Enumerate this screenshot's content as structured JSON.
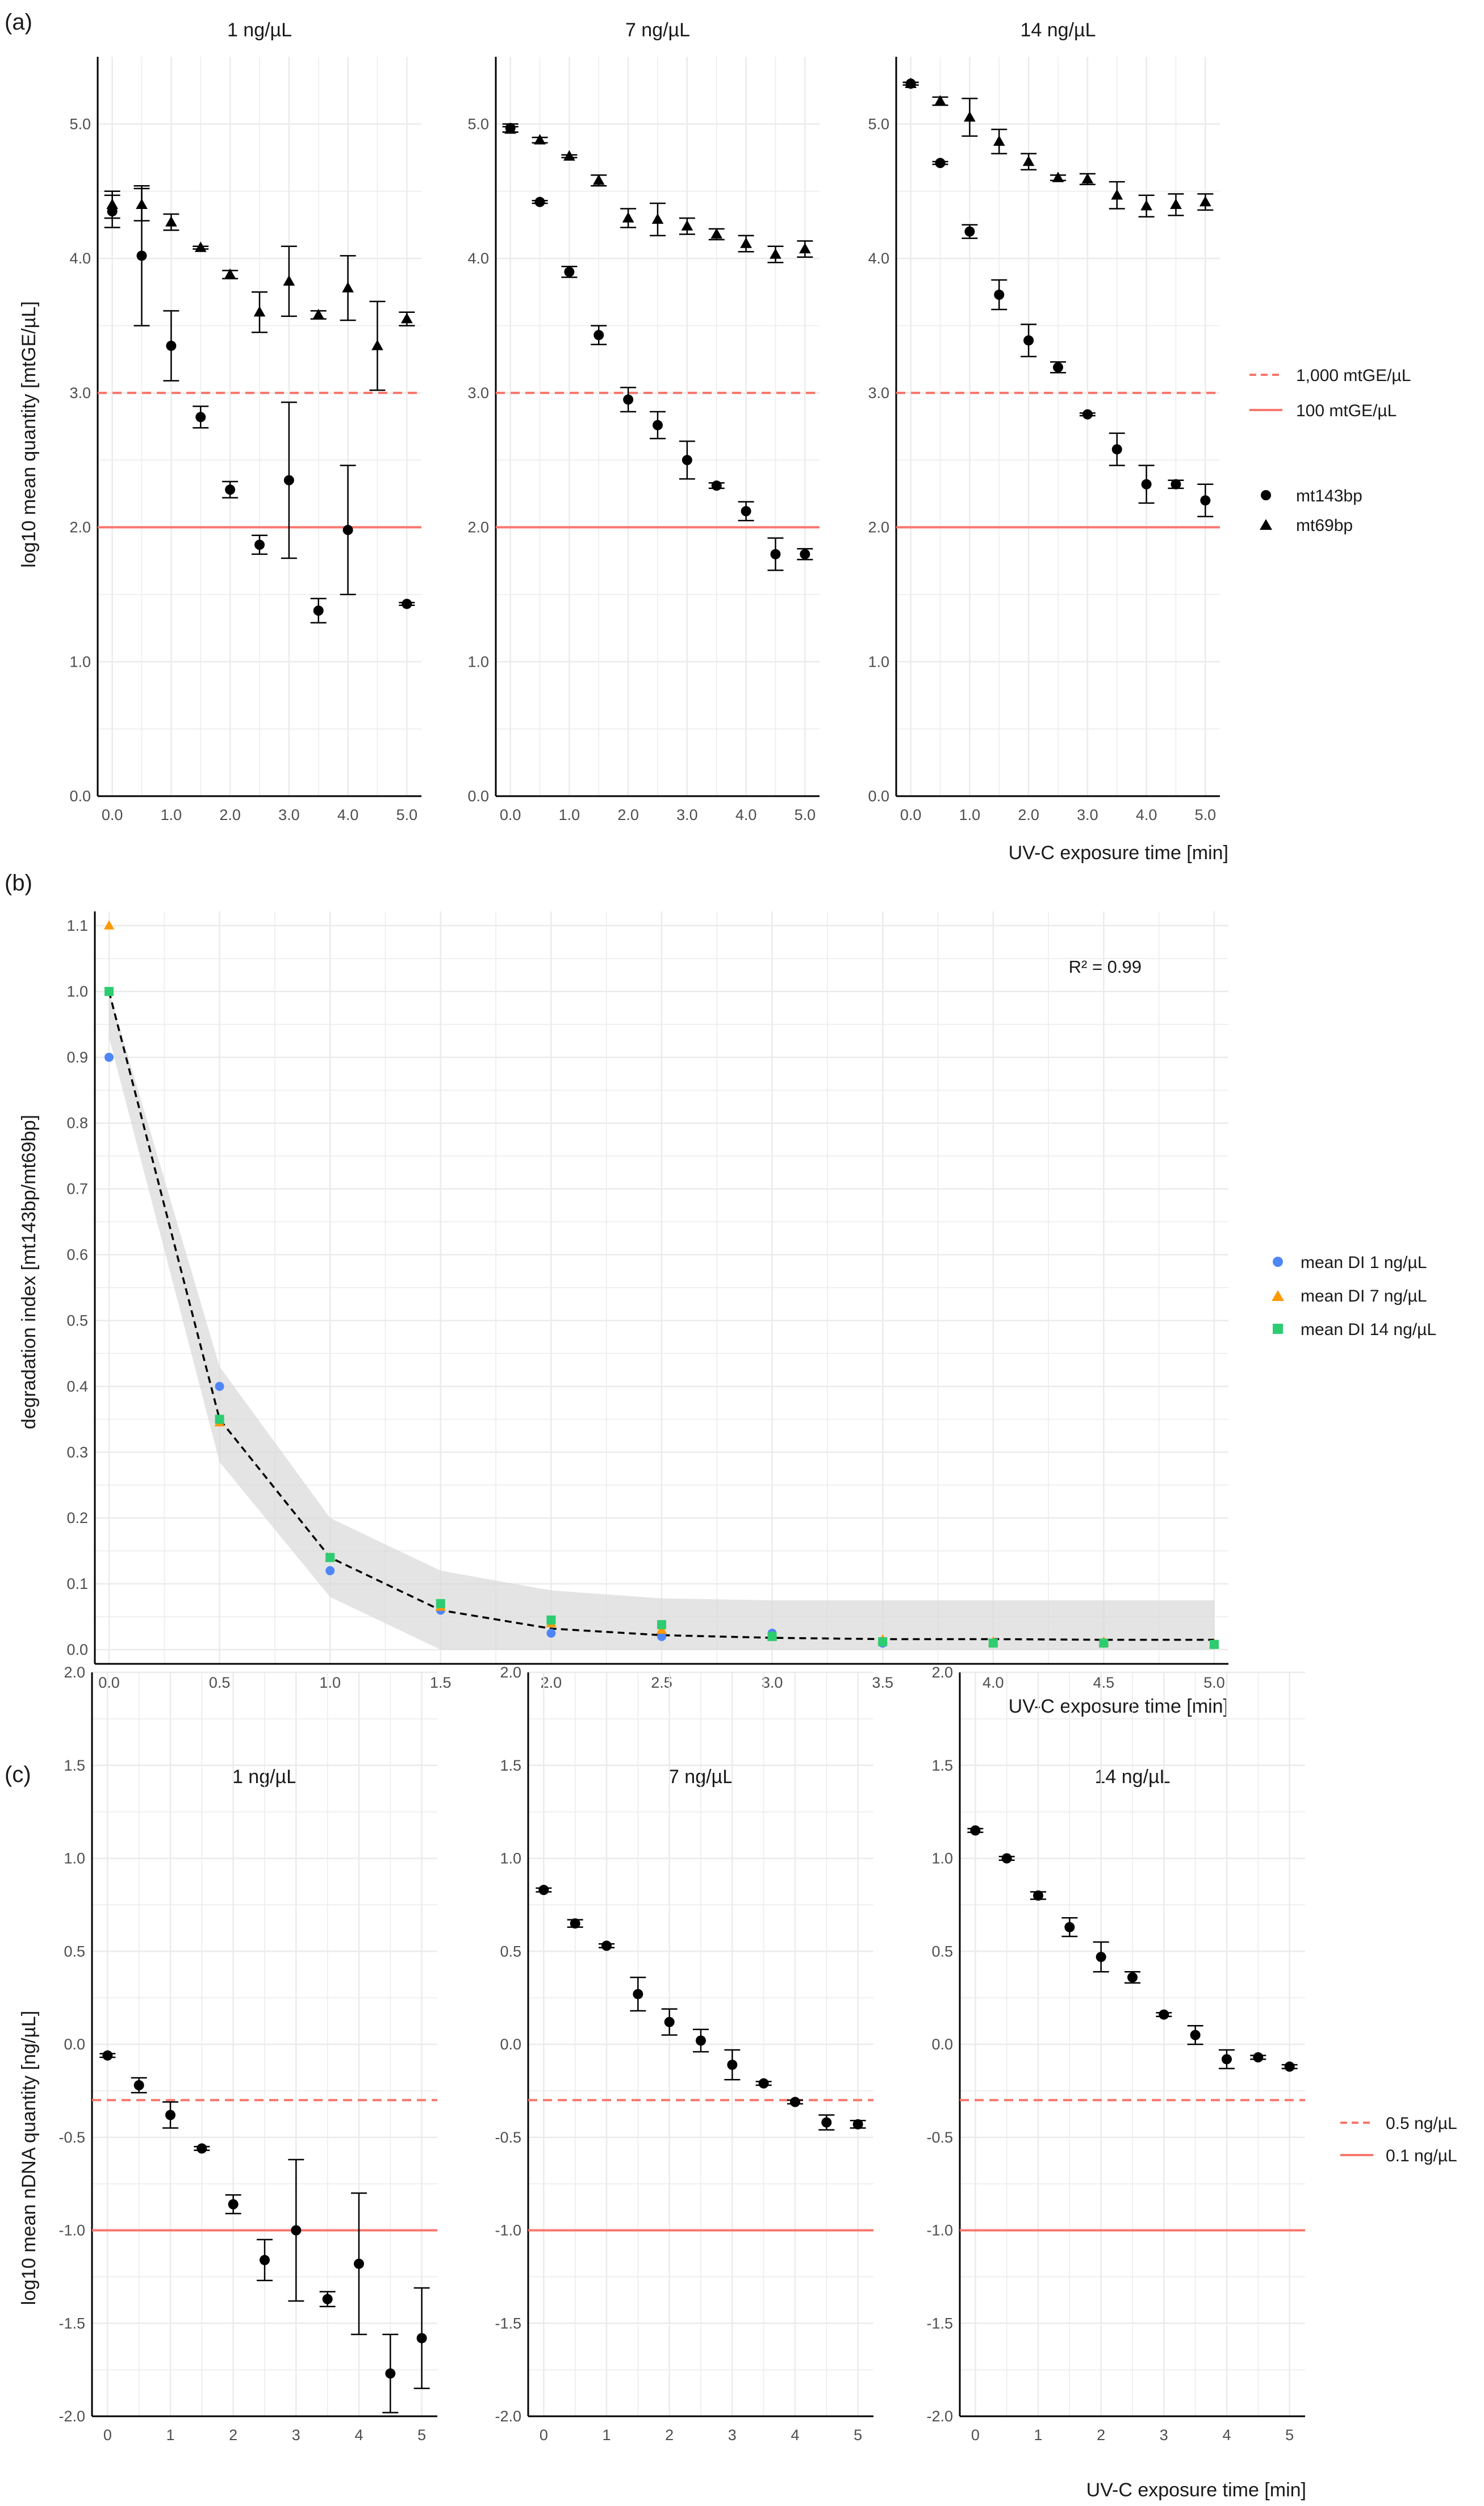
{
  "panel_tags": {
    "a": "(a)",
    "b": "(b)",
    "c": "(c)"
  },
  "colors": {
    "reference_line": "#f8766d",
    "grid": "#ebebeb",
    "points": "#000000",
    "di_1": "#4f86f7",
    "di_7": "#ff9900",
    "di_14": "#2ecc71",
    "ribbon": "#d9d9d9"
  },
  "panel_a": {
    "ylabel": "log10 mean quantity [mtGE/µL]",
    "xlabel": "UV-C exposure time [min]",
    "legend": {
      "dashed": "1,000 mtGE/µL",
      "solid": "100 mtGE/µL",
      "circle": "mt143bp",
      "triangle": "mt69bp"
    },
    "chart_data": [
      {
        "type": "scatter",
        "title": "1 ng/µL",
        "xlim": [
          0,
          5
        ],
        "ylim": [
          0,
          5.5
        ],
        "x_ticks": [
          "0.0",
          "1.0",
          "2.0",
          "3.0",
          "4.0",
          "5.0"
        ],
        "y_ticks": [
          "0.0",
          "1.0",
          "2.0",
          "3.0",
          "4.0",
          "5.0"
        ],
        "reference_lines": {
          "dashed": 3.0,
          "solid": 2.0
        },
        "series": [
          {
            "name": "mt143bp",
            "shape": "circle",
            "x": [
              0,
              0.5,
              1,
              1.5,
              2,
              2.5,
              3,
              3.5,
              4,
              5
            ],
            "y": [
              4.35,
              4.02,
              3.35,
              2.82,
              2.28,
              1.87,
              2.35,
              1.38,
              1.98,
              1.43
            ],
            "err": [
              0.12,
              0.52,
              0.26,
              0.08,
              0.06,
              0.07,
              0.58,
              0.09,
              0.48,
              0.01
            ]
          },
          {
            "name": "mt69bp",
            "shape": "triangle",
            "x": [
              0,
              0.5,
              1,
              1.5,
              2,
              2.5,
              3,
              3.5,
              4,
              4.5,
              5
            ],
            "y": [
              4.4,
              4.4,
              4.27,
              4.08,
              3.88,
              3.6,
              3.83,
              3.58,
              3.78,
              3.35,
              3.55
            ],
            "err": [
              0.1,
              0.12,
              0.06,
              0.01,
              0.03,
              0.15,
              0.26,
              0.03,
              0.24,
              0.33,
              0.05
            ]
          }
        ]
      },
      {
        "type": "scatter",
        "title": "7 ng/µL",
        "xlim": [
          0,
          5
        ],
        "ylim": [
          0,
          5.5
        ],
        "x_ticks": [
          "0.0",
          "1.0",
          "2.0",
          "3.0",
          "4.0",
          "5.0"
        ],
        "y_ticks": [
          "0.0",
          "1.0",
          "2.0",
          "3.0",
          "4.0",
          "5.0"
        ],
        "reference_lines": {
          "dashed": 3.0,
          "solid": 2.0
        },
        "series": [
          {
            "name": "mt143bp",
            "shape": "circle",
            "x": [
              0,
              0.5,
              1,
              1.5,
              2,
              2.5,
              3,
              3.5,
              4,
              4.5,
              5
            ],
            "y": [
              4.97,
              4.42,
              3.9,
              3.43,
              2.95,
              2.76,
              2.5,
              2.31,
              2.12,
              1.8,
              1.8
            ],
            "err": [
              0.03,
              0.01,
              0.04,
              0.07,
              0.09,
              0.1,
              0.14,
              0.02,
              0.07,
              0.12,
              0.04
            ]
          },
          {
            "name": "mt69bp",
            "shape": "triangle",
            "x": [
              0,
              0.5,
              1,
              1.5,
              2,
              2.5,
              3,
              3.5,
              4,
              4.5,
              5
            ],
            "y": [
              4.96,
              4.88,
              4.76,
              4.58,
              4.3,
              4.29,
              4.24,
              4.18,
              4.11,
              4.03,
              4.07
            ],
            "err": [
              0.02,
              0.02,
              0.01,
              0.04,
              0.07,
              0.12,
              0.06,
              0.04,
              0.06,
              0.06,
              0.06
            ]
          }
        ]
      },
      {
        "type": "scatter",
        "title": "14 ng/µL",
        "xlim": [
          0,
          5
        ],
        "ylim": [
          0,
          5.5
        ],
        "x_ticks": [
          "0.0",
          "1.0",
          "2.0",
          "3.0",
          "4.0",
          "5.0"
        ],
        "y_ticks": [
          "0.0",
          "1.0",
          "2.0",
          "3.0",
          "4.0",
          "5.0"
        ],
        "reference_lines": {
          "dashed": 3.0,
          "solid": 2.0
        },
        "series": [
          {
            "name": "mt143bp",
            "shape": "circle",
            "x": [
              0,
              0.5,
              1,
              1.5,
              2,
              2.5,
              3,
              3.5,
              4,
              4.5,
              5
            ],
            "y": [
              5.3,
              4.71,
              4.2,
              3.73,
              3.39,
              3.19,
              2.84,
              2.58,
              2.32,
              2.32,
              2.2
            ],
            "err": [
              0.01,
              0.01,
              0.05,
              0.11,
              0.12,
              0.04,
              0.01,
              0.12,
              0.14,
              0.03,
              0.12
            ]
          },
          {
            "name": "mt69bp",
            "shape": "triangle",
            "x": [
              0,
              0.5,
              1,
              1.5,
              2,
              2.5,
              3,
              3.5,
              4,
              4.5,
              5
            ],
            "y": [
              5.3,
              5.17,
              5.05,
              4.87,
              4.72,
              4.6,
              4.59,
              4.47,
              4.39,
              4.4,
              4.42
            ],
            "err": [
              0.01,
              0.03,
              0.14,
              0.09,
              0.06,
              0.02,
              0.04,
              0.1,
              0.08,
              0.08,
              0.06
            ]
          }
        ]
      }
    ]
  },
  "panel_b": {
    "ylabel": "degradation index [mt143bp/mt69bp]",
    "xlabel": "UV-C exposure time [min]",
    "annotation": "R² = 0.99",
    "legend": [
      "mean DI  1 ng/µL",
      "mean DI  7 ng/µL",
      "mean DI 14 ng/µL"
    ],
    "chart_data": {
      "type": "scatter",
      "xlim": [
        0,
        5
      ],
      "ylim": [
        0,
        1.1
      ],
      "x_ticks": [
        "0.0",
        "0.5",
        "1.0",
        "1.5",
        "2.0",
        "2.5",
        "3.0",
        "3.5",
        "4.0",
        "4.5",
        "5.0"
      ],
      "y_ticks": [
        "0.0",
        "0.1",
        "0.2",
        "0.3",
        "0.4",
        "0.5",
        "0.6",
        "0.7",
        "0.8",
        "0.9",
        "1.0",
        "1.1"
      ],
      "series": [
        {
          "name": "mean DI  1 ng/µL",
          "shape": "circle",
          "x": [
            0,
            0.5,
            1,
            1.5,
            2,
            2.5,
            3,
            3.5,
            4,
            4.5,
            5
          ],
          "y": [
            0.9,
            0.4,
            0.12,
            0.06,
            0.025,
            0.02,
            0.025,
            0.01,
            0.01,
            0.01,
            0.008
          ]
        },
        {
          "name": "mean DI  7 ng/µL",
          "shape": "triangle",
          "x": [
            0,
            0.5,
            1,
            1.5,
            2,
            2.5,
            3,
            3.5,
            4,
            4.5,
            5
          ],
          "y": [
            1.1,
            0.345,
            0.14,
            0.065,
            0.04,
            0.03,
            0.02,
            0.015,
            0.012,
            0.012,
            0.008
          ]
        },
        {
          "name": "mean DI 14 ng/µL",
          "shape": "square",
          "x": [
            0,
            0.5,
            1,
            1.5,
            2,
            2.5,
            3,
            3.5,
            4,
            4.5,
            5
          ],
          "y": [
            1.0,
            0.35,
            0.14,
            0.07,
            0.045,
            0.038,
            0.02,
            0.012,
            0.01,
            0.01,
            0.008
          ]
        }
      ],
      "fit": {
        "x": [
          0,
          0.5,
          1,
          1.5,
          2,
          2.5,
          3,
          3.5,
          4,
          4.5,
          5
        ],
        "y": [
          1.0,
          0.35,
          0.14,
          0.06,
          0.032,
          0.022,
          0.018,
          0.016,
          0.016,
          0.015,
          0.015
        ],
        "lower": [
          0.93,
          0.285,
          0.08,
          0.0,
          0.0,
          0.0,
          0.0,
          0.0,
          0.0,
          0.0,
          0.0
        ],
        "upper": [
          1.0,
          0.43,
          0.2,
          0.12,
          0.09,
          0.078,
          0.075,
          0.075,
          0.075,
          0.075,
          0.075
        ]
      }
    }
  },
  "panel_c": {
    "ylabel": "log10 mean nDNA quantity [ng/µL]",
    "xlabel": "UV-C exposure time [min]",
    "legend": {
      "dashed": "0.5 ng/µL",
      "solid": "0.1 ng/µL"
    },
    "chart_data": [
      {
        "type": "scatter",
        "title": "1 ng/µL",
        "xlim": [
          0,
          5
        ],
        "ylim": [
          -2,
          2
        ],
        "x_ticks": [
          "0",
          "1",
          "2",
          "3",
          "4",
          "5"
        ],
        "y_ticks": [
          "-2.0",
          "-1.5",
          "-1.0",
          "-0.5",
          "0.0",
          "0.5",
          "1.0",
          "1.5",
          "2.0"
        ],
        "reference_lines": {
          "dashed": -0.3,
          "solid": -1.0
        },
        "series": [
          {
            "name": "nDNA",
            "shape": "circle",
            "x": [
              0,
              0.5,
              1,
              1.5,
              2,
              2.5,
              3,
              3.5,
              4,
              4.5,
              5
            ],
            "y": [
              -0.06,
              -0.22,
              -0.38,
              -0.56,
              -0.86,
              -1.16,
              -1.0,
              -1.37,
              -1.18,
              -1.77,
              -1.58
            ],
            "err": [
              0.01,
              0.04,
              0.07,
              0.01,
              0.05,
              0.11,
              0.38,
              0.04,
              0.38,
              0.21,
              0.27
            ]
          }
        ]
      },
      {
        "type": "scatter",
        "title": "7 ng/µL",
        "xlim": [
          0,
          5
        ],
        "ylim": [
          -2,
          2
        ],
        "x_ticks": [
          "0",
          "1",
          "2",
          "3",
          "4",
          "5"
        ],
        "y_ticks": [
          "-2.0",
          "-1.5",
          "-1.0",
          "-0.5",
          "0.0",
          "0.5",
          "1.0",
          "1.5",
          "2.0"
        ],
        "reference_lines": {
          "dashed": -0.3,
          "solid": -1.0
        },
        "series": [
          {
            "name": "nDNA",
            "shape": "circle",
            "x": [
              0,
              0.5,
              1,
              1.5,
              2,
              2.5,
              3,
              3.5,
              4,
              4.5,
              5
            ],
            "y": [
              0.83,
              0.65,
              0.53,
              0.27,
              0.12,
              0.02,
              -0.11,
              -0.21,
              -0.31,
              -0.42,
              -0.43
            ],
            "err": [
              0.01,
              0.02,
              0.01,
              0.09,
              0.07,
              0.06,
              0.08,
              0.01,
              0.01,
              0.04,
              0.02
            ]
          }
        ]
      },
      {
        "type": "scatter",
        "title": "14 ng/µL",
        "xlim": [
          0,
          5
        ],
        "ylim": [
          -2,
          2
        ],
        "x_ticks": [
          "0",
          "1",
          "2",
          "3",
          "4",
          "5"
        ],
        "y_ticks": [
          "-2.0",
          "-1.5",
          "-1.0",
          "-0.5",
          "0.0",
          "0.5",
          "1.0",
          "1.5",
          "2.0"
        ],
        "reference_lines": {
          "dashed": -0.3,
          "solid": -1.0
        },
        "series": [
          {
            "name": "nDNA",
            "shape": "circle",
            "x": [
              0,
              0.5,
              1,
              1.5,
              2,
              2.5,
              3,
              3.5,
              4,
              4.5,
              5
            ],
            "y": [
              1.15,
              1.0,
              0.8,
              0.63,
              0.47,
              0.36,
              0.16,
              0.05,
              -0.08,
              -0.07,
              -0.12
            ],
            "err": [
              0.01,
              0.01,
              0.02,
              0.05,
              0.08,
              0.03,
              0.01,
              0.05,
              0.05,
              0.01,
              0.01
            ]
          }
        ]
      }
    ]
  }
}
